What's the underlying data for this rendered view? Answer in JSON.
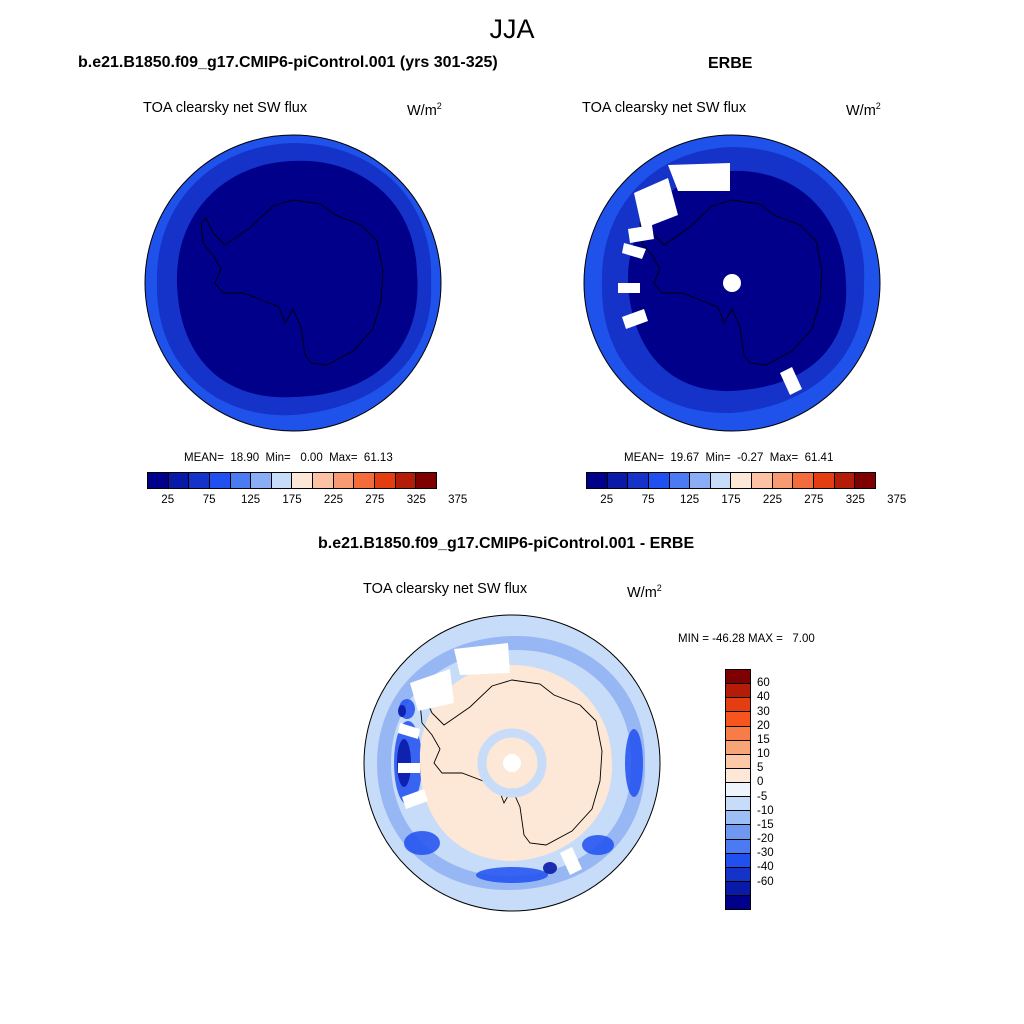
{
  "figure": {
    "season": "JJA"
  },
  "panels": {
    "model": {
      "title": "b.e21.B1850.f09_g17.CMIP6-piControl.001 (yrs 301-325)",
      "variable": "TOA clearsky net SW flux",
      "units_base": "W/m",
      "units_exp": "2",
      "stats": "MEAN=  18.90  Min=   0.00  Max=  61.13"
    },
    "obs": {
      "title": "ERBE",
      "variable": "TOA clearsky net SW flux",
      "units_base": "W/m",
      "units_exp": "2",
      "stats": "MEAN=  19.67  Min=  -0.27  Max=  61.41"
    },
    "diff": {
      "title": "b.e21.B1850.f09_g17.CMIP6-piControl.001 - ERBE",
      "variable": "TOA clearsky net SW flux",
      "units_base": "W/m",
      "units_exp": "2",
      "stats": "MIN = -46.28 MAX =   7.00"
    }
  },
  "colorbar_main": {
    "colors": [
      "#00008b",
      "#0a1aa8",
      "#1533c8",
      "#2050f0",
      "#4a7bf2",
      "#8aaef5",
      "#c7dcf8",
      "#fde7d6",
      "#fbc3a3",
      "#f89a72",
      "#f46b3c",
      "#e43d12",
      "#b51c07",
      "#7f0000"
    ],
    "labels": [
      "25",
      "75",
      "125",
      "175",
      "225",
      "275",
      "325",
      "375"
    ]
  },
  "colorbar_diff": {
    "colors": [
      "#7f0000",
      "#b51c07",
      "#e43d12",
      "#f6561e",
      "#f77c47",
      "#f9a477",
      "#fbc9a8",
      "#fde7d6",
      "#eef4fc",
      "#c7dcf8",
      "#9dbdf5",
      "#6f98f0",
      "#4a7bf2",
      "#2050f0",
      "#1533c8",
      "#0a1aa8",
      "#00008b"
    ],
    "labels": [
      "60",
      "40",
      "30",
      "20",
      "15",
      "10",
      "5",
      "0",
      "-5",
      "-10",
      "-15",
      "-20",
      "-30",
      "-40",
      "-60"
    ]
  }
}
